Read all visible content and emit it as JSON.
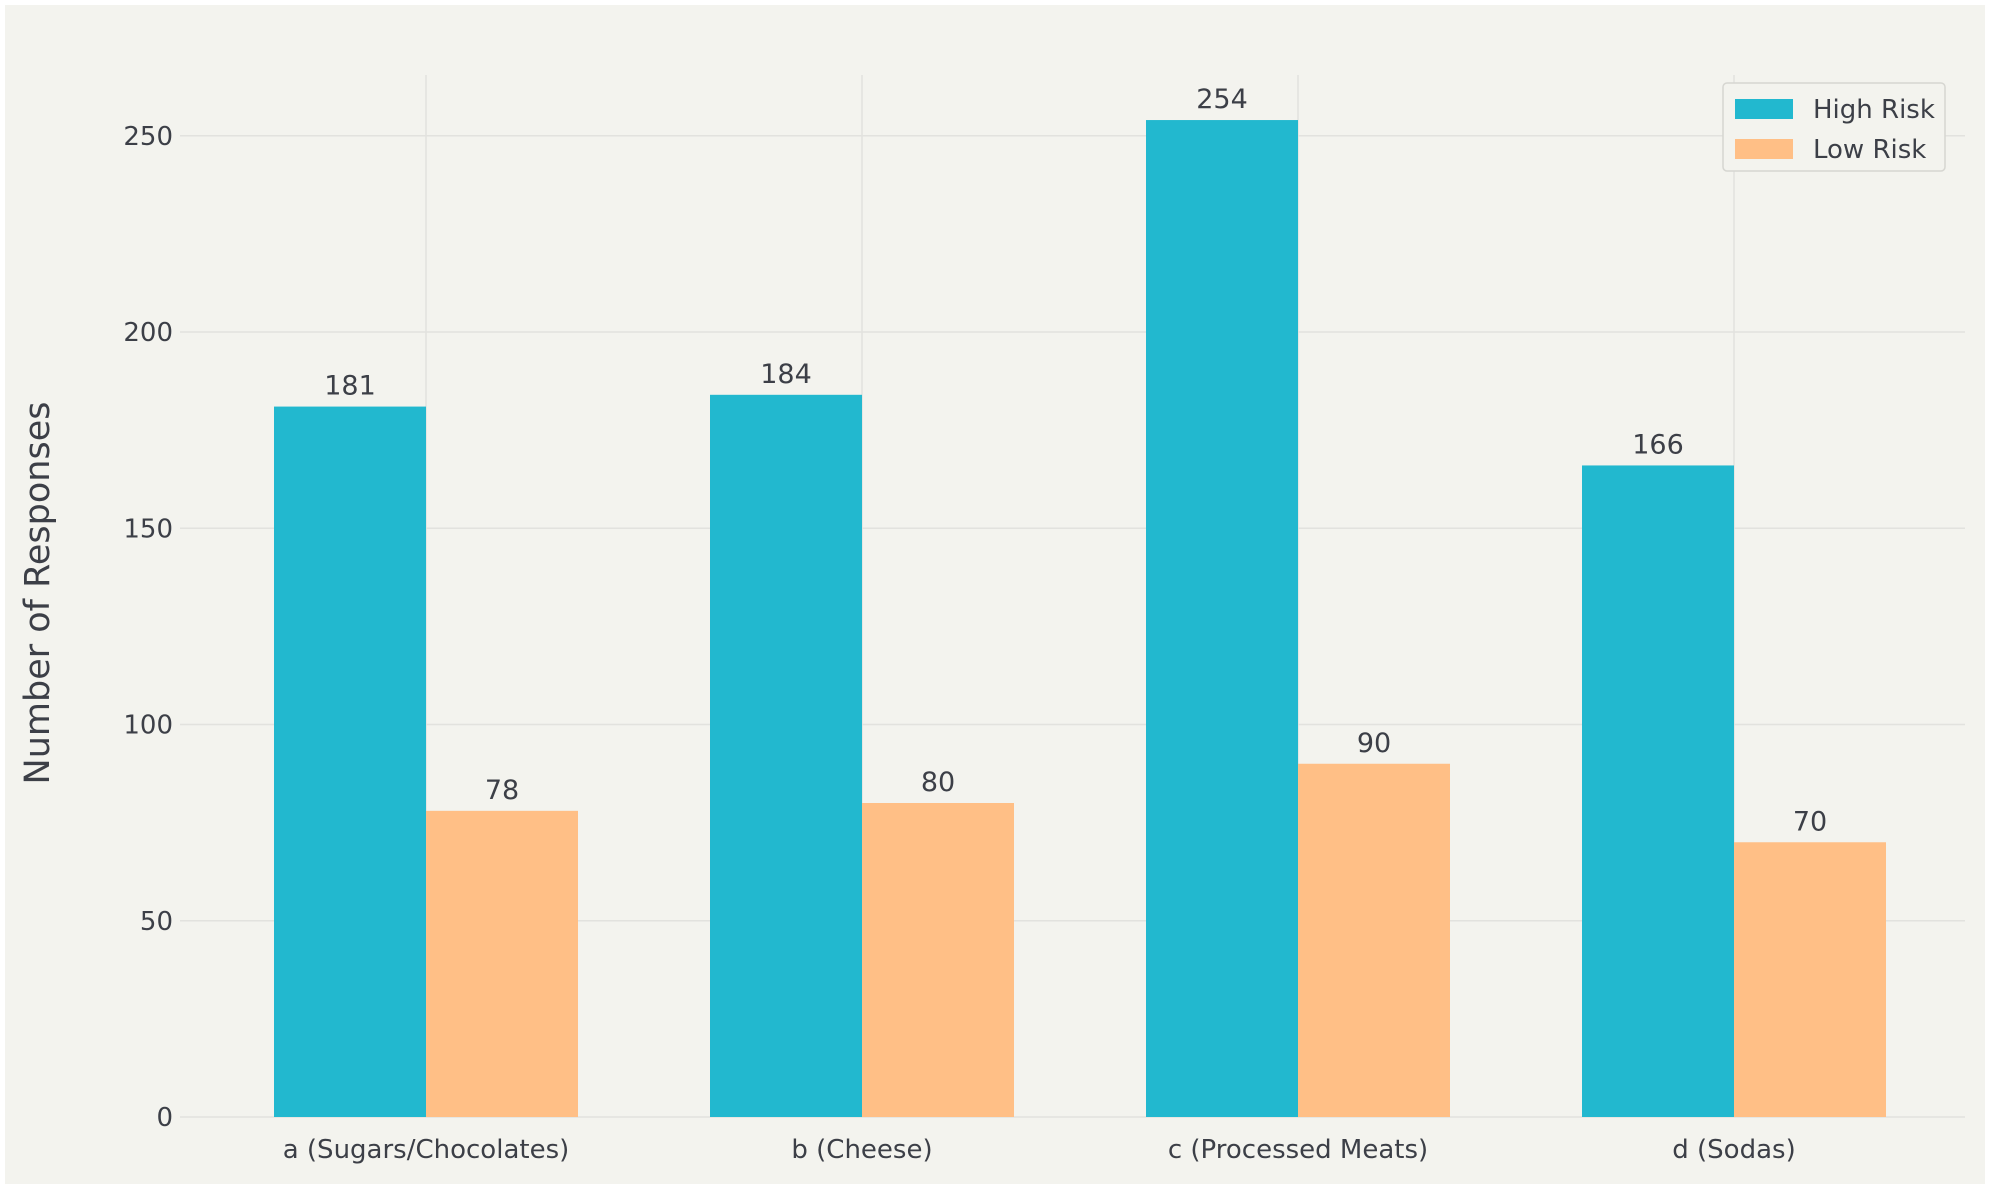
{
  "chart_data": {
    "type": "bar",
    "title": "",
    "xlabel": "",
    "ylabel": "Number of Responses",
    "categories": [
      "a (Sugars/Chocolates)",
      "b (Cheese)",
      "c (Processed Meats)",
      "d (Sodas)"
    ],
    "series": [
      {
        "name": "High Risk",
        "values": [
          181,
          184,
          254,
          166
        ],
        "color": "#22b8cf"
      },
      {
        "name": "Low Risk",
        "values": [
          78,
          80,
          90,
          70
        ],
        "color": "#ffbf86"
      }
    ],
    "ylim": [
      0,
      260
    ],
    "yticks": [
      0,
      50,
      100,
      150,
      200,
      250
    ],
    "grid": true,
    "legend_position": "top-right",
    "data_labels": true
  }
}
